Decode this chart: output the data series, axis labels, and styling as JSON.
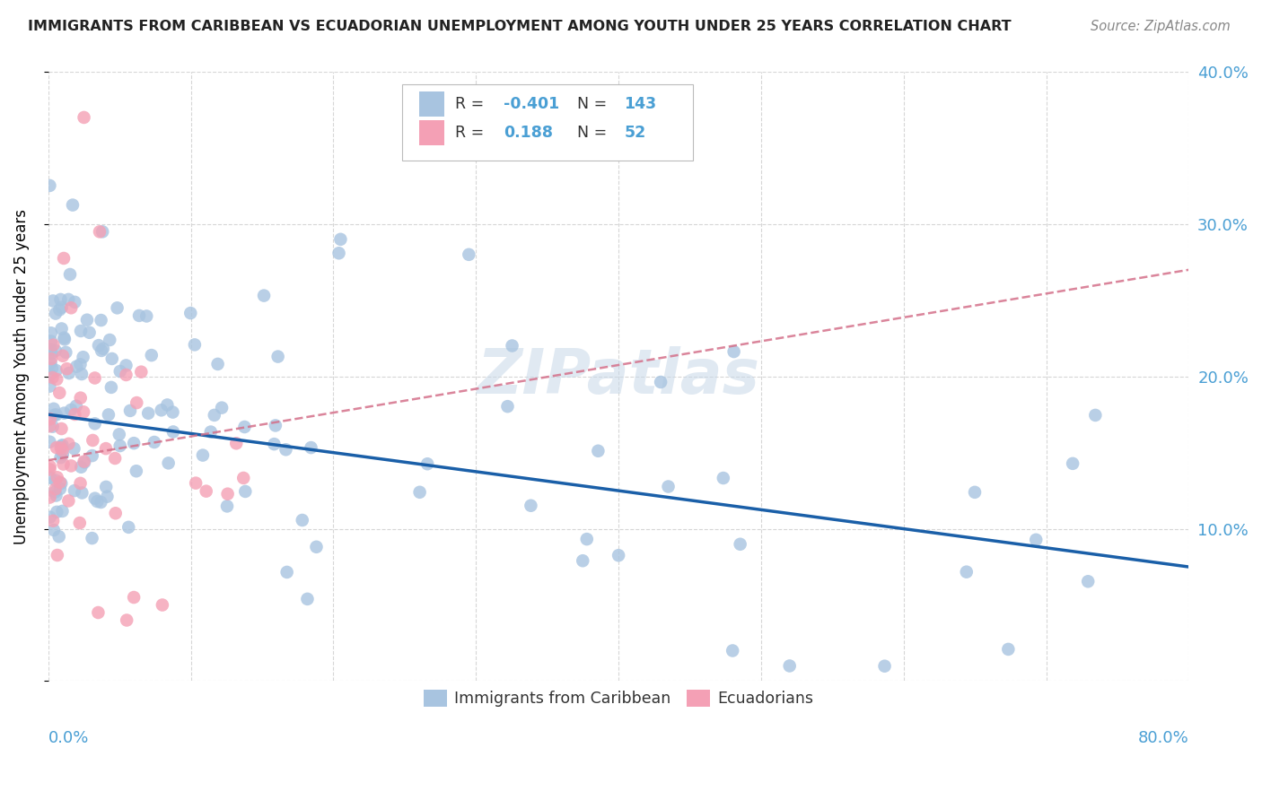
{
  "title": "IMMIGRANTS FROM CARIBBEAN VS ECUADORIAN UNEMPLOYMENT AMONG YOUTH UNDER 25 YEARS CORRELATION CHART",
  "source": "Source: ZipAtlas.com",
  "ylabel": "Unemployment Among Youth under 25 years",
  "legend_label1": "Immigrants from Caribbean",
  "legend_label2": "Ecuadorians",
  "R1": -0.401,
  "N1": 143,
  "R2": 0.188,
  "N2": 52,
  "blue_color": "#a8c4e0",
  "pink_color": "#f4a0b5",
  "trend_blue": "#1a5fa8",
  "trend_pink": "#d4708a",
  "watermark": "ZIPatlas",
  "watermark_color": "#c8d8e8",
  "xlim": [
    0.0,
    0.8
  ],
  "ylim": [
    0.0,
    0.4
  ],
  "blue_trend_x": [
    0.0,
    0.8
  ],
  "blue_trend_y": [
    0.175,
    0.075
  ],
  "pink_trend_x": [
    0.0,
    0.8
  ],
  "pink_trend_y": [
    0.145,
    0.27
  ]
}
